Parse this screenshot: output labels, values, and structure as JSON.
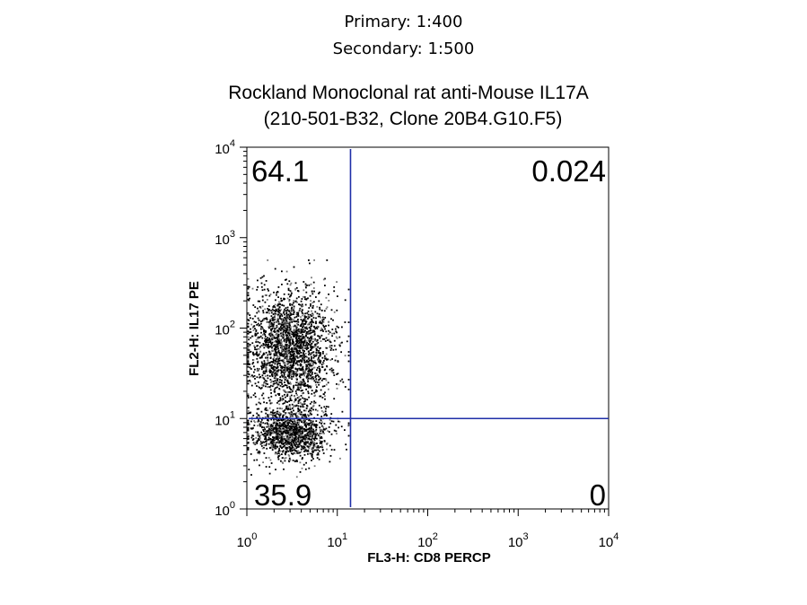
{
  "header": {
    "primary": "Primary:  1:400",
    "secondary": "Secondary:  1:500"
  },
  "chart_data": {
    "type": "scatter",
    "title": "Rockland Monoclonal rat anti-Mouse IL17A",
    "subtitle": "(210-501-B32, Clone 20B4.G10.F5)",
    "xlabel": "FL3-H: CD8 PERCP",
    "ylabel": "FL2-H: IL17 PE",
    "x_scale": "log",
    "y_scale": "log",
    "xlim": [
      1,
      10000
    ],
    "ylim": [
      1,
      10000
    ],
    "x_ticks": [
      {
        "base": "10",
        "exp": "0"
      },
      {
        "base": "10",
        "exp": "1"
      },
      {
        "base": "10",
        "exp": "2"
      },
      {
        "base": "10",
        "exp": "3"
      },
      {
        "base": "10",
        "exp": "4"
      }
    ],
    "y_ticks": [
      {
        "base": "10",
        "exp": "0"
      },
      {
        "base": "10",
        "exp": "1"
      },
      {
        "base": "10",
        "exp": "2"
      },
      {
        "base": "10",
        "exp": "3"
      },
      {
        "base": "10",
        "exp": "4"
      }
    ],
    "quadrant_gates": {
      "x": 14,
      "y": 10,
      "color": "#1f2fa8"
    },
    "quadrant_values": {
      "upper_left": "64.1",
      "upper_right": "0.024",
      "lower_left": "35.9",
      "lower_right": "0"
    },
    "populations": [
      {
        "name": "",
        "x_center": 3,
        "y_center": 7,
        "x_spread_log": 0.22,
        "y_spread_log": 0.15,
        "fraction": 0.36
      },
      {
        "name": "",
        "x_center": 3,
        "y_center": 60,
        "x_spread_log": 0.24,
        "y_spread_log": 0.32,
        "fraction": 0.64
      }
    ],
    "point_color": "#000000",
    "grid": false
  }
}
